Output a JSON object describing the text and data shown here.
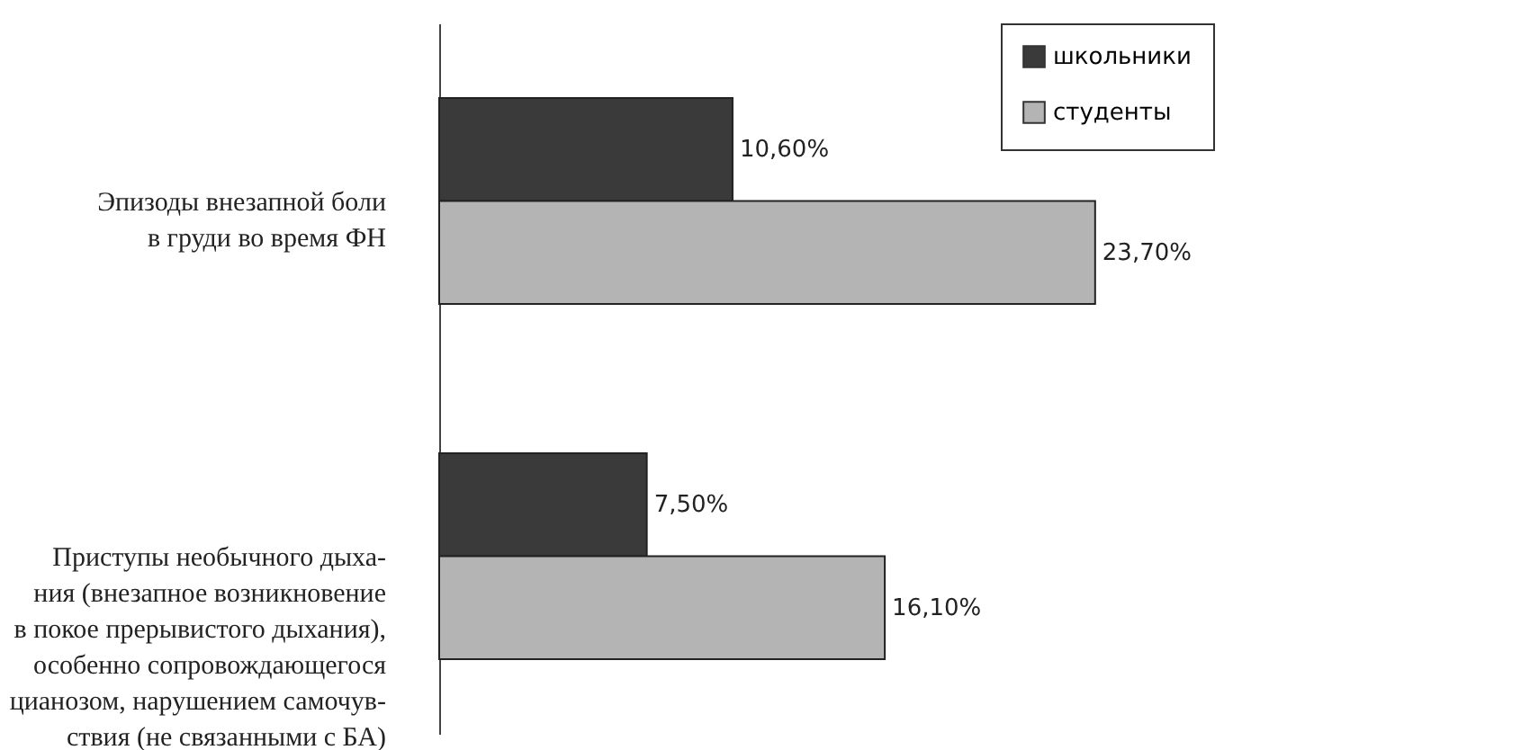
{
  "chart_data": {
    "type": "bar",
    "orientation": "horizontal",
    "categories": [
      "Эпизоды внезапной боли\nв груди во время ФН",
      "Приступы необычного дыха-\nния (внезапное возникновение\nв покое прерывистого дыхания),\nособенно сопровождающегося\nцианозом, нарушением самочув-\nствия (не связанными с БА)"
    ],
    "series": [
      {
        "name": "школьники",
        "color": "#3a3a3a",
        "values": [
          10.6,
          7.5
        ],
        "value_labels": [
          "10,60%",
          "7,50%"
        ]
      },
      {
        "name": "студенты",
        "color": "#b4b4b4",
        "values": [
          23.7,
          16.1
        ],
        "value_labels": [
          "23,70%",
          "16,10%"
        ]
      }
    ],
    "legend": "top right"
  }
}
